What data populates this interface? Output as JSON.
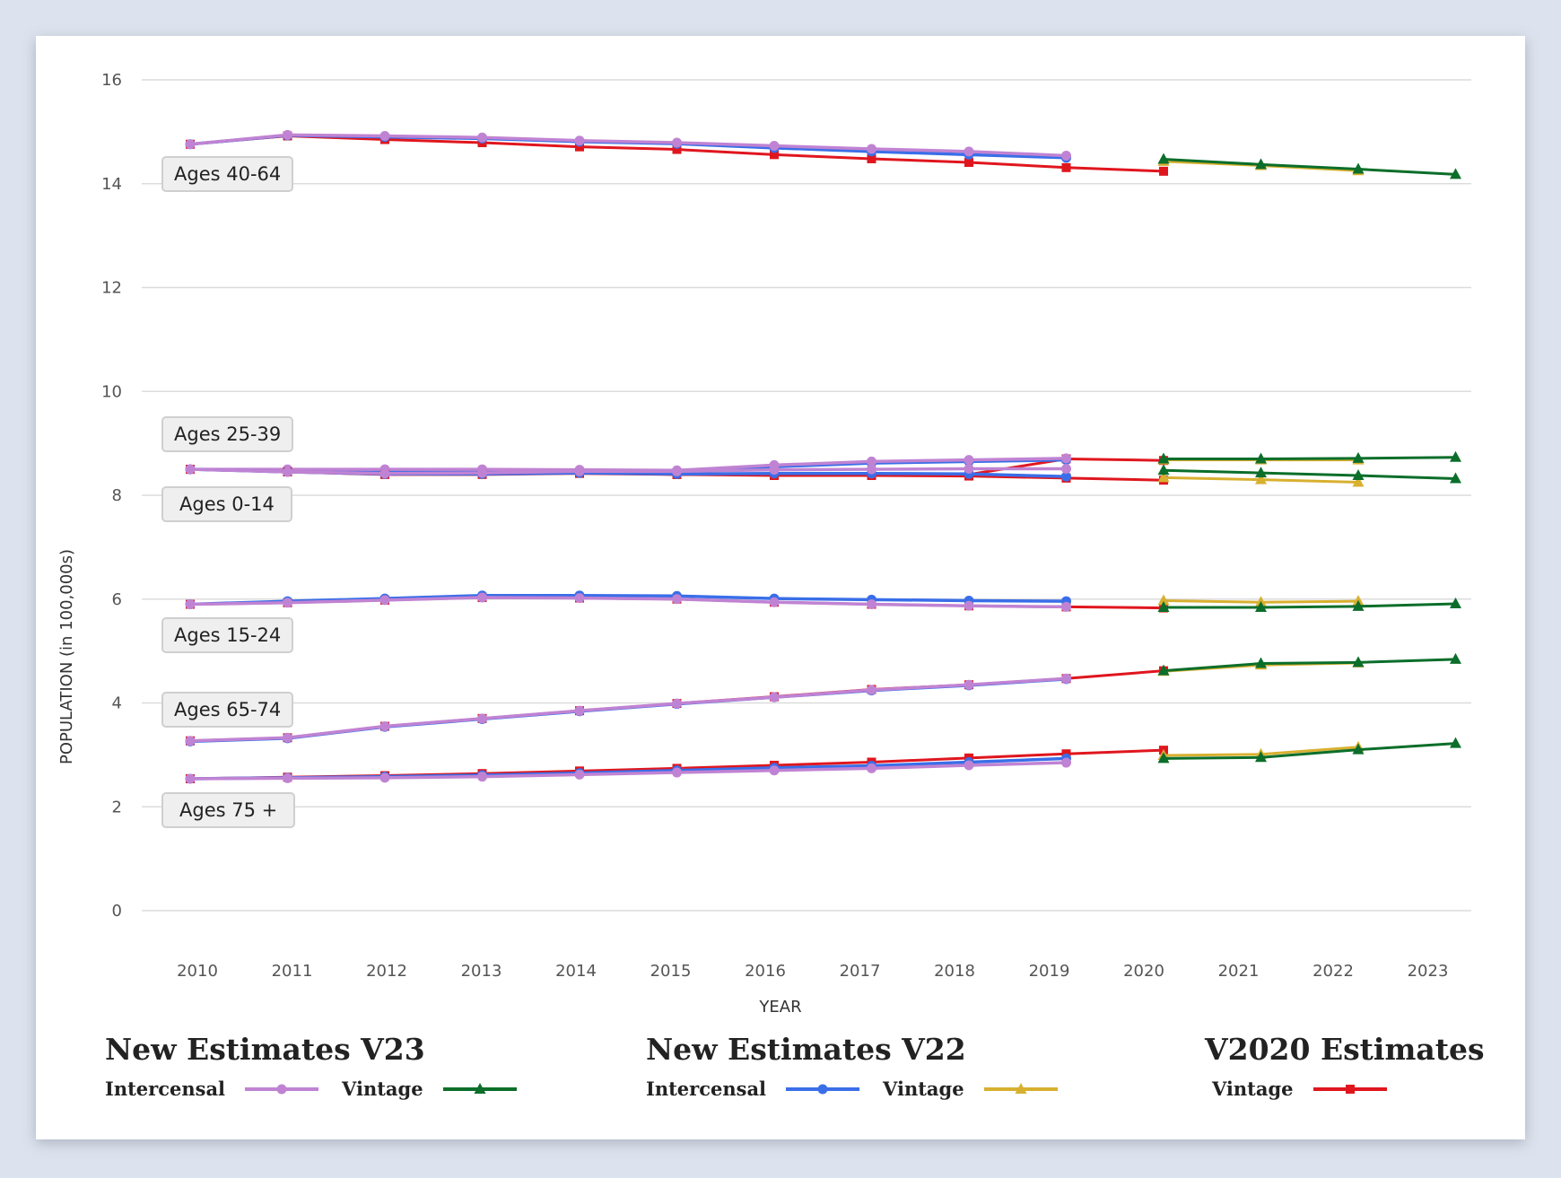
{
  "chart_data": {
    "type": "line",
    "title": "",
    "xlabel": "YEAR",
    "ylabel": "POPULATION (in 100,000s)",
    "ylim": [
      0,
      16
    ],
    "yticks": [
      0,
      2,
      4,
      6,
      8,
      10,
      12,
      14,
      16
    ],
    "x": [
      2010,
      2011,
      2012,
      2013,
      2014,
      2015,
      2016,
      2017,
      2018,
      2019,
      2020,
      2021,
      2022,
      2023
    ],
    "grid": true,
    "series_styles": {
      "v23_intercensal": {
        "name": "New Estimates V23 Intercensal",
        "color": "#c083d3",
        "marker": "circle"
      },
      "v23_vintage": {
        "name": "New Estimates V23 Vintage",
        "color": "#0b6e2a",
        "marker": "triangle"
      },
      "v22_intercensal": {
        "name": "New Estimates V22 Intercensal",
        "color": "#3a6ee8",
        "marker": "circle"
      },
      "v22_vintage": {
        "name": "New Estimates V22 Vintage",
        "color": "#d8b030",
        "marker": "triangle"
      },
      "v2020_vintage": {
        "name": "V2020 Estimates Vintage",
        "color": "#e0161e",
        "marker": "square"
      }
    },
    "groups": [
      {
        "label": "Ages 40-64",
        "v2020_vintage": {
          "x": [
            2010,
            2011,
            2012,
            2013,
            2014,
            2015,
            2016,
            2017,
            2018,
            2019,
            2020
          ],
          "y": [
            14.76,
            14.92,
            14.85,
            14.79,
            14.71,
            14.66,
            14.56,
            14.48,
            14.41,
            14.31,
            14.24
          ]
        },
        "v22_intercensal": {
          "x": [
            2010,
            2011,
            2012,
            2013,
            2014,
            2015,
            2016,
            2017,
            2018,
            2019
          ],
          "y": [
            14.76,
            14.93,
            14.9,
            14.87,
            14.81,
            14.77,
            14.69,
            14.62,
            14.56,
            14.5
          ]
        },
        "v23_intercensal": {
          "x": [
            2010,
            2011,
            2012,
            2013,
            2014,
            2015,
            2016,
            2017,
            2018,
            2019
          ],
          "y": [
            14.76,
            14.94,
            14.92,
            14.89,
            14.83,
            14.79,
            14.73,
            14.67,
            14.62,
            14.54
          ]
        },
        "v22_vintage": {
          "x": [
            2020,
            2021,
            2022
          ],
          "y": [
            14.43,
            14.35,
            14.25
          ]
        },
        "v23_vintage": {
          "x": [
            2020,
            2021,
            2022,
            2023
          ],
          "y": [
            14.47,
            14.37,
            14.28,
            14.18
          ]
        }
      },
      {
        "label": "Ages 25-39",
        "v2020_vintage": {
          "x": [
            2010,
            2011,
            2012,
            2013,
            2014,
            2015,
            2016,
            2017,
            2018,
            2019,
            2020
          ],
          "y": [
            8.5,
            8.45,
            8.42,
            8.42,
            8.44,
            8.4,
            8.4,
            8.4,
            8.4,
            8.7,
            8.67
          ]
        },
        "v22_intercensal": {
          "x": [
            2010,
            2011,
            2012,
            2013,
            2014,
            2015,
            2016,
            2017,
            2018,
            2019
          ],
          "y": [
            8.5,
            8.47,
            8.46,
            8.46,
            8.47,
            8.45,
            8.55,
            8.62,
            8.65,
            8.68
          ]
        },
        "v23_intercensal": {
          "x": [
            2010,
            2011,
            2012,
            2013,
            2014,
            2015,
            2016,
            2017,
            2018,
            2019
          ],
          "y": [
            8.5,
            8.5,
            8.5,
            8.5,
            8.49,
            8.48,
            8.58,
            8.65,
            8.68,
            8.71
          ]
        },
        "v22_vintage": {
          "x": [
            2020,
            2021,
            2022
          ],
          "y": [
            8.68,
            8.68,
            8.68
          ]
        },
        "v23_vintage": {
          "x": [
            2020,
            2021,
            2022,
            2023
          ],
          "y": [
            8.7,
            8.7,
            8.71,
            8.73
          ]
        }
      },
      {
        "label": "Ages 0-14",
        "v2020_vintage": {
          "x": [
            2010,
            2011,
            2012,
            2013,
            2014,
            2015,
            2016,
            2017,
            2018,
            2019,
            2020
          ],
          "y": [
            8.5,
            8.45,
            8.4,
            8.4,
            8.42,
            8.4,
            8.38,
            8.38,
            8.37,
            8.33,
            8.29
          ]
        },
        "v22_intercensal": {
          "x": [
            2010,
            2011,
            2012,
            2013,
            2014,
            2015,
            2016,
            2017,
            2018,
            2019
          ],
          "y": [
            8.5,
            8.45,
            8.41,
            8.41,
            8.43,
            8.41,
            8.42,
            8.42,
            8.41,
            8.36
          ]
        },
        "v23_intercensal": {
          "x": [
            2010,
            2011,
            2012,
            2013,
            2014,
            2015,
            2016,
            2017,
            2018,
            2019
          ],
          "y": [
            8.5,
            8.45,
            8.42,
            8.43,
            8.46,
            8.46,
            8.49,
            8.5,
            8.51,
            8.51
          ]
        },
        "v22_vintage": {
          "x": [
            2020,
            2021,
            2022
          ],
          "y": [
            8.34,
            8.3,
            8.25
          ]
        },
        "v23_vintage": {
          "x": [
            2020,
            2021,
            2022,
            2023
          ],
          "y": [
            8.48,
            8.43,
            8.38,
            8.32
          ]
        }
      },
      {
        "label": "Ages 15-24",
        "v2020_vintage": {
          "x": [
            2010,
            2011,
            2012,
            2013,
            2014,
            2015,
            2016,
            2017,
            2018,
            2019,
            2020
          ],
          "y": [
            5.9,
            5.93,
            5.98,
            6.03,
            6.02,
            6.0,
            5.94,
            5.9,
            5.87,
            5.85,
            5.83
          ]
        },
        "v22_intercensal": {
          "x": [
            2010,
            2011,
            2012,
            2013,
            2014,
            2015,
            2016,
            2017,
            2018,
            2019
          ],
          "y": [
            5.9,
            5.96,
            6.01,
            6.07,
            6.07,
            6.06,
            6.01,
            5.99,
            5.97,
            5.96
          ]
        },
        "v23_intercensal": {
          "x": [
            2010,
            2011,
            2012,
            2013,
            2014,
            2015,
            2016,
            2017,
            2018,
            2019
          ],
          "y": [
            5.9,
            5.93,
            5.98,
            6.03,
            6.02,
            6.0,
            5.94,
            5.9,
            5.87,
            5.85
          ]
        },
        "v22_vintage": {
          "x": [
            2020,
            2021,
            2022
          ],
          "y": [
            5.97,
            5.94,
            5.96
          ]
        },
        "v23_vintage": {
          "x": [
            2020,
            2021,
            2022,
            2023
          ],
          "y": [
            5.84,
            5.84,
            5.86,
            5.91
          ]
        }
      },
      {
        "label": "Ages 65-74",
        "v2020_vintage": {
          "x": [
            2010,
            2011,
            2012,
            2013,
            2014,
            2015,
            2016,
            2017,
            2018,
            2019,
            2020
          ],
          "y": [
            3.27,
            3.33,
            3.55,
            3.7,
            3.85,
            3.99,
            4.12,
            4.26,
            4.35,
            4.47,
            4.62
          ]
        },
        "v22_intercensal": {
          "x": [
            2010,
            2011,
            2012,
            2013,
            2014,
            2015,
            2016,
            2017,
            2018,
            2019
          ],
          "y": [
            3.26,
            3.32,
            3.54,
            3.69,
            3.84,
            3.98,
            4.11,
            4.24,
            4.34,
            4.46
          ]
        },
        "v23_intercensal": {
          "x": [
            2010,
            2011,
            2012,
            2013,
            2014,
            2015,
            2016,
            2017,
            2018,
            2019
          ],
          "y": [
            3.27,
            3.33,
            3.55,
            3.7,
            3.85,
            3.99,
            4.11,
            4.25,
            4.35,
            4.47
          ]
        },
        "v22_vintage": {
          "x": [
            2020,
            2021,
            2022
          ],
          "y": [
            4.61,
            4.73,
            4.77
          ]
        },
        "v23_vintage": {
          "x": [
            2020,
            2021,
            2022,
            2023
          ],
          "y": [
            4.62,
            4.76,
            4.78,
            4.84
          ]
        }
      },
      {
        "label": "Ages 75 +",
        "v2020_vintage": {
          "x": [
            2010,
            2011,
            2012,
            2013,
            2014,
            2015,
            2016,
            2017,
            2018,
            2019,
            2020
          ],
          "y": [
            2.54,
            2.57,
            2.6,
            2.64,
            2.69,
            2.74,
            2.8,
            2.86,
            2.94,
            3.02,
            3.09
          ]
        },
        "v22_intercensal": {
          "x": [
            2010,
            2011,
            2012,
            2013,
            2014,
            2015,
            2016,
            2017,
            2018,
            2019
          ],
          "y": [
            2.54,
            2.56,
            2.58,
            2.61,
            2.65,
            2.7,
            2.75,
            2.79,
            2.86,
            2.93
          ]
        },
        "v23_intercensal": {
          "x": [
            2010,
            2011,
            2012,
            2013,
            2014,
            2015,
            2016,
            2017,
            2018,
            2019
          ],
          "y": [
            2.54,
            2.55,
            2.56,
            2.58,
            2.62,
            2.66,
            2.7,
            2.74,
            2.8,
            2.85
          ]
        },
        "v22_vintage": {
          "x": [
            2020,
            2021,
            2022
          ],
          "y": [
            2.99,
            3.01,
            3.15
          ]
        },
        "v23_vintage": {
          "x": [
            2020,
            2021,
            2022,
            2023
          ],
          "y": [
            2.93,
            2.95,
            3.1,
            3.22
          ]
        }
      }
    ]
  },
  "legend": [
    {
      "title": "New Estimates V23",
      "items": [
        {
          "label": "Intercensal",
          "series": "v23_intercensal"
        },
        {
          "label": "Vintage",
          "series": "v23_vintage"
        }
      ]
    },
    {
      "title": "New Estimates V22",
      "items": [
        {
          "label": "Intercensal",
          "series": "v22_intercensal"
        },
        {
          "label": "Vintage",
          "series": "v22_vintage"
        }
      ]
    },
    {
      "title": "V2020 Estimates",
      "items": [
        {
          "label": "Vintage",
          "series": "v2020_vintage"
        }
      ]
    }
  ]
}
